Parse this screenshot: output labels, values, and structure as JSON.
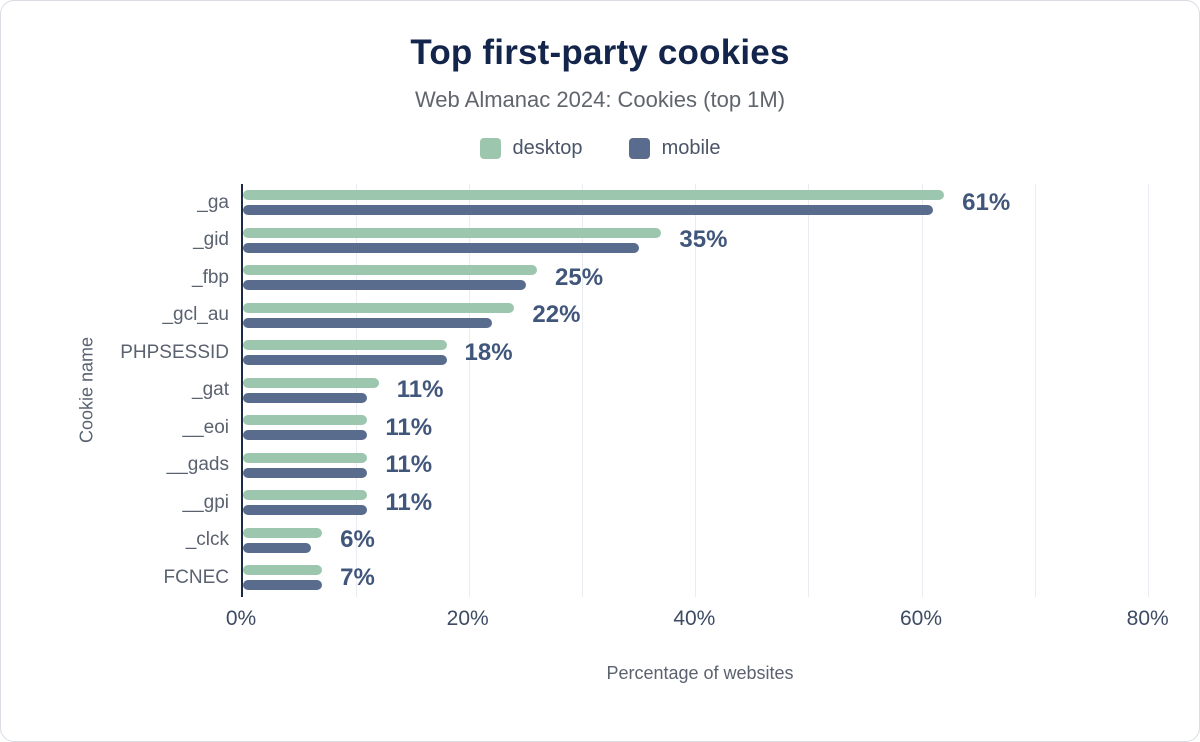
{
  "title": "Top first-party cookies",
  "subtitle": "Web Almanac 2024: Cookies (top 1M)",
  "legend": [
    {
      "label": "desktop",
      "color": "#9cc6ae"
    },
    {
      "label": "mobile",
      "color": "#5a6c8e"
    }
  ],
  "colors": {
    "desktop": "#9cc6ae",
    "mobile": "#5a6c8e",
    "title": "#14254c",
    "value_label": "#41567b",
    "axis_line": "#1b2a45",
    "gridline": "#e9edf2"
  },
  "chart_data": {
    "type": "bar",
    "orientation": "horizontal",
    "title": "Top first-party cookies",
    "subtitle": "Web Almanac 2024: Cookies (top 1M)",
    "categories": [
      "_ga",
      "_gid",
      "_fbp",
      "_gcl_au",
      "PHPSESSID",
      "_gat",
      "__eoi",
      "__gads",
      "__gpi",
      "_clck",
      "FCNEC"
    ],
    "series": [
      {
        "name": "desktop",
        "color": "#9cc6ae",
        "values": [
          62,
          37,
          26,
          24,
          18,
          12,
          11,
          11,
          11,
          7,
          7
        ]
      },
      {
        "name": "mobile",
        "color": "#5a6c8e",
        "values": [
          61,
          35,
          25,
          22,
          18,
          11,
          11,
          11,
          11,
          6,
          7
        ]
      }
    ],
    "value_labels": [
      "61%",
      "35%",
      "25%",
      "22%",
      "18%",
      "11%",
      "11%",
      "11%",
      "11%",
      "6%",
      "7%"
    ],
    "xlabel": "Percentage of websites",
    "ylabel": "Cookie name",
    "x_ticks": [
      "0%",
      "20%",
      "40%",
      "60%",
      "80%"
    ],
    "x_tick_values": [
      0,
      20,
      40,
      60,
      80
    ],
    "xlim": [
      0,
      81
    ],
    "grid_interval": 10,
    "grid": true,
    "legend_position": "top"
  }
}
